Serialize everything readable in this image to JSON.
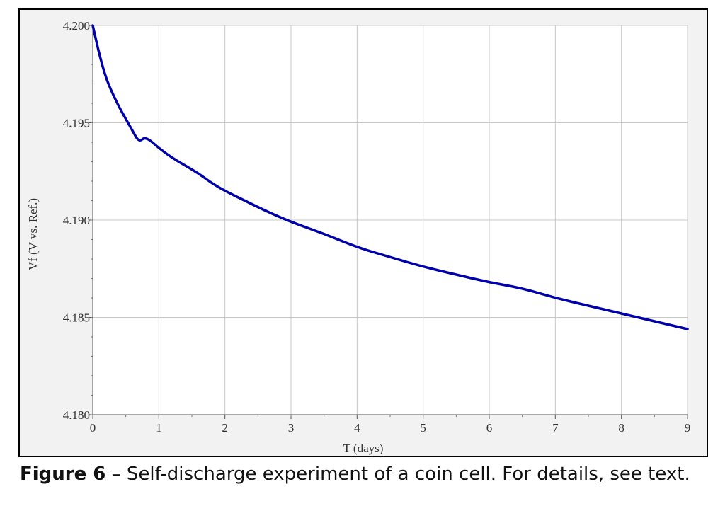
{
  "chart_data": {
    "type": "line",
    "title": "",
    "xlabel": "T (days)",
    "ylabel": "Vf (V vs. Ref.)",
    "xlim": [
      0,
      9
    ],
    "ylim": [
      4.18,
      4.2
    ],
    "xticks": [
      0,
      1,
      2,
      3,
      4,
      5,
      6,
      7,
      8,
      9
    ],
    "yticks": [
      "4.180",
      "4.185",
      "4.190",
      "4.195",
      "4.200"
    ],
    "grid": true,
    "line_color": "#0000aa",
    "series": [
      {
        "x": [
          0,
          0.1,
          0.2,
          0.3,
          0.4,
          0.5,
          0.6,
          0.7,
          0.8,
          1.0,
          1.2,
          1.4,
          1.6,
          1.8,
          2.0,
          2.3,
          2.6,
          3.0,
          3.5,
          4.0,
          4.5,
          5.0,
          5.5,
          6.0,
          6.5,
          7.0,
          7.5,
          8.0,
          8.5,
          9.0
        ],
        "y": [
          4.2,
          4.1985,
          4.1973,
          4.1965,
          4.1958,
          4.1952,
          4.1946,
          4.194,
          4.1943,
          4.1937,
          4.1932,
          4.1928,
          4.1924,
          4.1919,
          4.1915,
          4.191,
          4.1905,
          4.1899,
          4.1893,
          4.1886,
          4.1881,
          4.1876,
          4.1872,
          4.1868,
          4.1865,
          4.186,
          4.1856,
          4.1852,
          4.1848,
          4.1844
        ]
      }
    ]
  },
  "caption": {
    "label": "Figure 6",
    "text": " – Self-discharge experiment of a coin cell.  For details, see text."
  }
}
